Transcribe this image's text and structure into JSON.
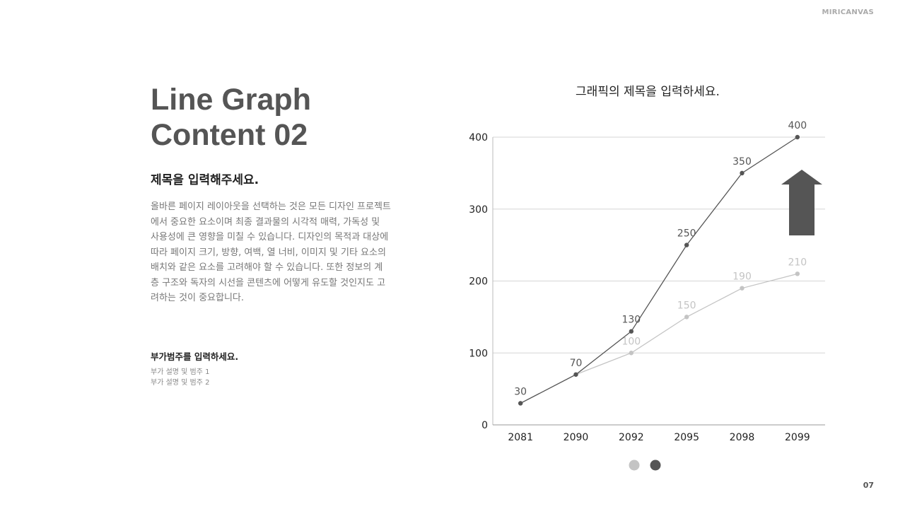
{
  "brand": "MIRICANVAS",
  "page_number": "07",
  "title_line1": "Line Graph",
  "title_line2": "Content 02",
  "subtitle": "제목을 입력해주세요.",
  "body": "올바른 페이지 레이아웃을 선택하는 것은 모든 디자인 프로젝트에서 중요한 요소이며 최종 결과물의 시각적 매력, 가독성 및 사용성에 큰 영향을 미칠 수 있습니다. 디자인의 목적과 대상에 따라 페이지 크기, 방향, 여백, 열 너비, 이미지 및 기타 요소의 배치와 같은 요소를 고려해야 할 수 있습니다. 또한 정보의 계층 구조와 독자의 시선을 콘텐츠에 어떻게 유도할 것인지도 고려하는 것이 중요합니다.",
  "category_title": "부가범주를 입력하세요.",
  "category_items": [
    "부가 설명 및 범주 1",
    "부가 설명 및 범주 2"
  ],
  "chart_data": {
    "type": "line",
    "title": "그래픽의 제목을 입력하세요.",
    "categories": [
      "2081",
      "2090",
      "2092",
      "2095",
      "2098",
      "2099"
    ],
    "series": [
      {
        "values": [
          30,
          70,
          100,
          150,
          190,
          210
        ],
        "color": "#c4c4c4"
      },
      {
        "values": [
          30,
          70,
          130,
          250,
          350,
          400
        ],
        "color": "#555555"
      }
    ],
    "ylim": [
      0,
      400
    ],
    "yticks": [
      0,
      100,
      200,
      300,
      400
    ],
    "grid": true,
    "legend": "bottom",
    "annotation_icon": "up-arrow-icon"
  }
}
